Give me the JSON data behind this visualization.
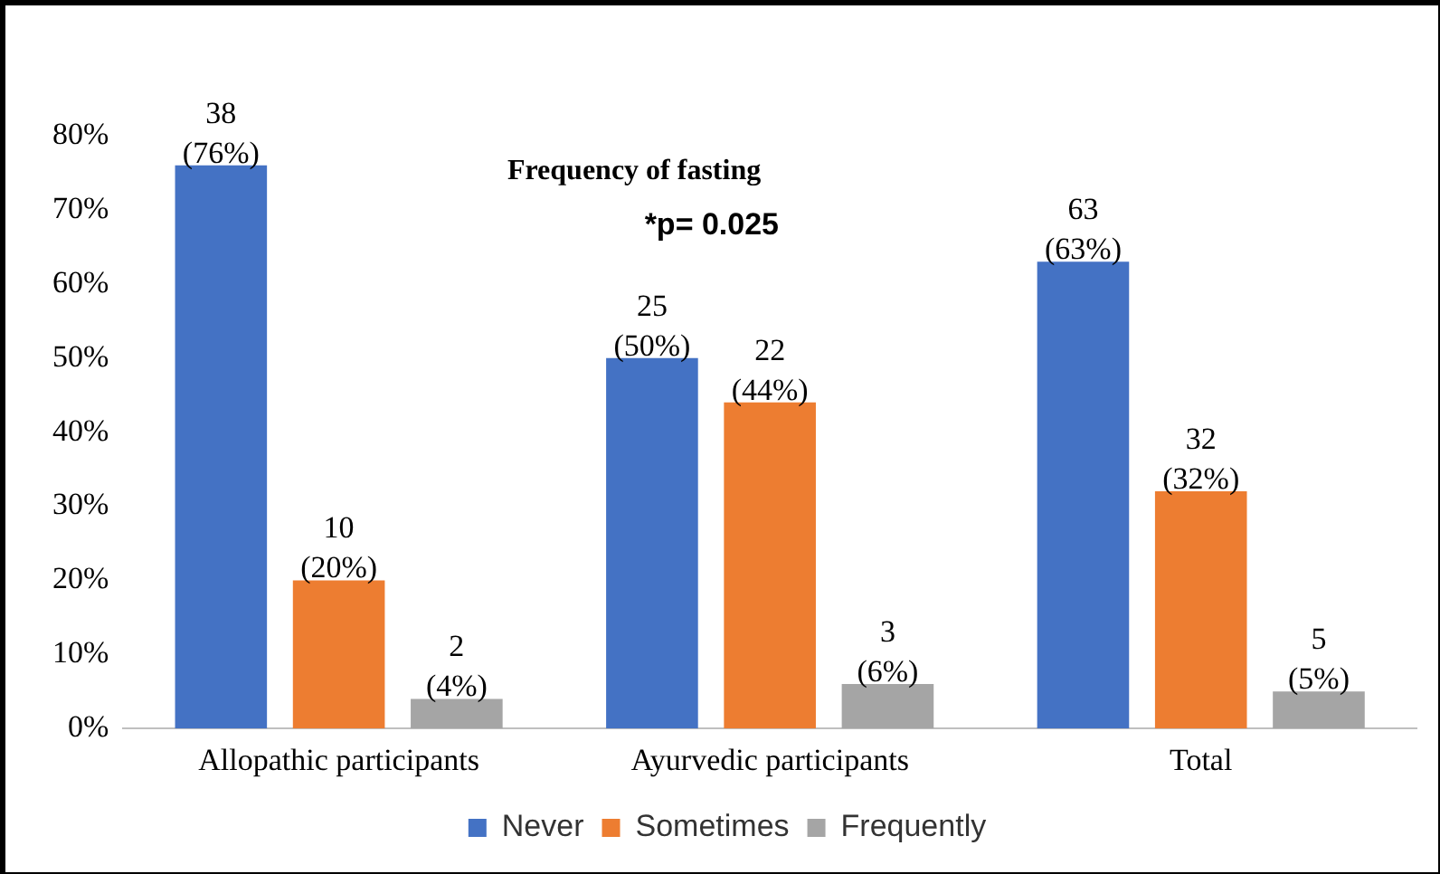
{
  "chart_data": {
    "type": "bar",
    "title": "Frequency of fasting",
    "annotations": [
      "*p= 0.025"
    ],
    "categories": [
      "Allopathic participants",
      "Ayurvedic participants",
      "Total"
    ],
    "series": [
      {
        "name": "Never",
        "color": "#4472c4",
        "values": [
          76,
          50,
          63
        ],
        "value_labels": [
          "38\n(76%)",
          "25\n(50%)",
          "63\n(63%)"
        ]
      },
      {
        "name": "Sometimes",
        "color": "#ed7d31",
        "values": [
          20,
          44,
          32
        ],
        "value_labels": [
          "10\n(20%)",
          "22\n(44%)",
          "32\n(32%)"
        ]
      },
      {
        "name": "Frequently",
        "color": "#a5a5a5",
        "values": [
          4,
          6,
          5
        ],
        "value_labels": [
          "2\n(4%)",
          "3\n(6%)",
          "5\n(5%)"
        ]
      }
    ],
    "ylim": [
      0,
      80
    ],
    "yticks": [
      {
        "value": 0,
        "label": "0%"
      },
      {
        "value": 10,
        "label": "10%"
      },
      {
        "value": 20,
        "label": "20%"
      },
      {
        "value": 30,
        "label": "30%"
      },
      {
        "value": 40,
        "label": "40%"
      },
      {
        "value": 50,
        "label": "50%"
      },
      {
        "value": 60,
        "label": "60%"
      },
      {
        "value": 70,
        "label": "70%"
      },
      {
        "value": 80,
        "label": "80%"
      }
    ],
    "grid": false,
    "legend": "bottom"
  }
}
